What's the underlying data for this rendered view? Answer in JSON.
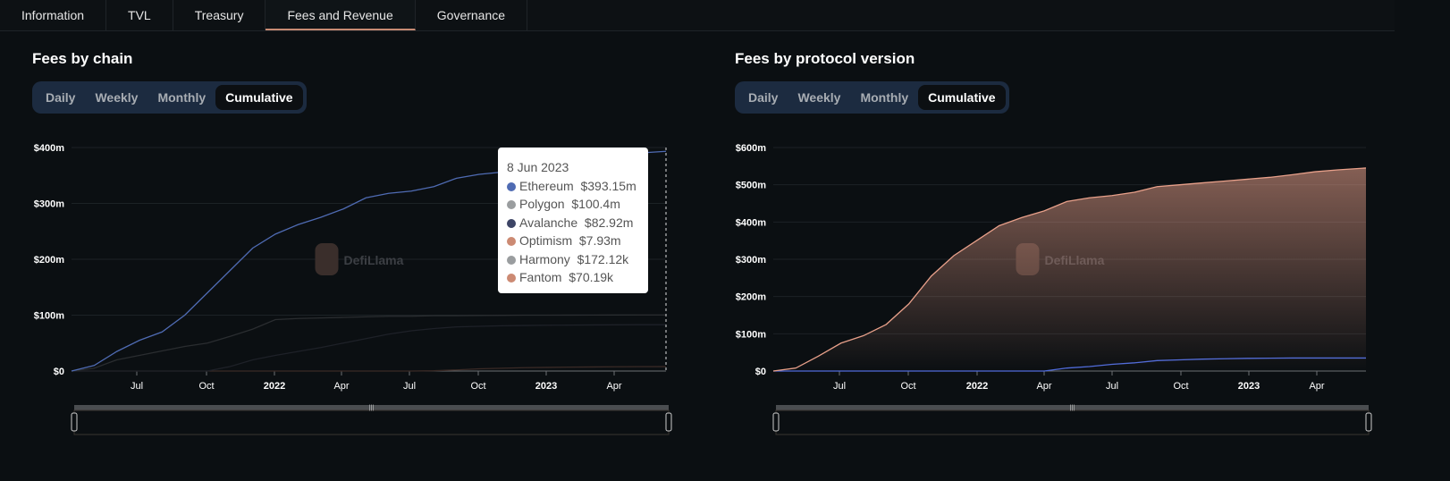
{
  "tabs": [
    {
      "label": "Information"
    },
    {
      "label": "TVL"
    },
    {
      "label": "Treasury"
    },
    {
      "label": "Fees and Revenue",
      "active": true
    },
    {
      "label": "Governance"
    }
  ],
  "period_options": [
    "Daily",
    "Weekly",
    "Monthly",
    "Cumulative"
  ],
  "selected_period": "Cumulative",
  "watermark": "DefiLlama",
  "tooltip": {
    "date": "8 Jun 2023",
    "rows": [
      {
        "name": "Ethereum",
        "value": "$393.15m",
        "color": "#4f6bb3"
      },
      {
        "name": "Polygon",
        "value": "$100.4m",
        "color": "#9a9d9f"
      },
      {
        "name": "Avalanche",
        "value": "$82.92m",
        "color": "#3d4566"
      },
      {
        "name": "Optimism",
        "value": "$7.93m",
        "color": "#cc8a73"
      },
      {
        "name": "Harmony",
        "value": "$172.12k",
        "color": "#9a9d9f"
      },
      {
        "name": "Fantom",
        "value": "$70.19k",
        "color": "#cc8a73"
      }
    ]
  },
  "chart_data": [
    {
      "type": "line",
      "title": "Fees by chain",
      "ylim": [
        0,
        400
      ],
      "yticks": [
        "$0",
        "$100m",
        "$200m",
        "$300m",
        "$400m"
      ],
      "xticks": [
        "Jul",
        "Oct",
        "2022",
        "Apr",
        "Jul",
        "Oct",
        "2023",
        "Apr"
      ],
      "x": [
        "2021-04",
        "2021-05",
        "2021-06",
        "2021-07",
        "2021-08",
        "2021-09",
        "2021-10",
        "2021-11",
        "2021-12",
        "2022-01",
        "2022-02",
        "2022-03",
        "2022-04",
        "2022-05",
        "2022-06",
        "2022-07",
        "2022-08",
        "2022-09",
        "2022-10",
        "2022-11",
        "2022-12",
        "2023-01",
        "2023-02",
        "2023-03",
        "2023-04",
        "2023-05",
        "2023-06"
      ],
      "series": [
        {
          "name": "Ethereum",
          "color": "#4f6bb3",
          "values": [
            0,
            10,
            35,
            55,
            70,
            100,
            140,
            180,
            220,
            245,
            262,
            275,
            290,
            310,
            318,
            322,
            330,
            345,
            352,
            356,
            360,
            365,
            372,
            380,
            385,
            390,
            393.15
          ]
        },
        {
          "name": "Polygon",
          "color": "#2a2d30",
          "values": [
            0,
            5,
            20,
            28,
            36,
            44,
            50,
            62,
            75,
            92,
            94,
            95,
            96,
            97,
            98,
            98,
            99,
            99,
            99.5,
            99.7,
            100,
            100,
            100.1,
            100.2,
            100.3,
            100.4,
            100.4
          ]
        },
        {
          "name": "Avalanche",
          "color": "#1e2128",
          "values": [
            0,
            0,
            0,
            0,
            0,
            0,
            0,
            8,
            20,
            28,
            35,
            42,
            50,
            58,
            66,
            72,
            76,
            79,
            80,
            81,
            81.5,
            82,
            82.2,
            82.5,
            82.7,
            82.9,
            82.92
          ]
        },
        {
          "name": "Optimism",
          "color": "#3a2a26",
          "values": [
            0,
            0,
            0,
            0,
            0,
            0,
            0,
            0,
            0,
            0,
            0,
            0,
            0,
            0,
            0,
            0,
            0.5,
            2,
            4,
            5,
            6,
            6.5,
            7,
            7.3,
            7.6,
            7.8,
            7.93
          ]
        }
      ]
    },
    {
      "type": "area",
      "title": "Fees by protocol version",
      "ylim": [
        0,
        600
      ],
      "yticks": [
        "$0",
        "$100m",
        "$200m",
        "$300m",
        "$400m",
        "$500m",
        "$600m"
      ],
      "xticks": [
        "Jul",
        "Oct",
        "2022",
        "Apr",
        "Jul",
        "Oct",
        "2023",
        "Apr"
      ],
      "x": [
        "2021-04",
        "2021-05",
        "2021-06",
        "2021-07",
        "2021-08",
        "2021-09",
        "2021-10",
        "2021-11",
        "2021-12",
        "2022-01",
        "2022-02",
        "2022-03",
        "2022-04",
        "2022-05",
        "2022-06",
        "2022-07",
        "2022-08",
        "2022-09",
        "2022-10",
        "2022-11",
        "2022-12",
        "2023-01",
        "2023-02",
        "2023-03",
        "2023-04",
        "2023-05",
        "2023-06"
      ],
      "series": [
        {
          "color": "#e8a08a",
          "values": [
            0,
            8,
            40,
            75,
            95,
            125,
            180,
            255,
            310,
            350,
            390,
            412,
            430,
            455,
            465,
            471,
            480,
            495,
            500,
            505,
            510,
            515,
            520,
            527,
            535,
            540,
            545
          ]
        },
        {
          "color": "#4f6bdb",
          "values": [
            0,
            0,
            0,
            0,
            0,
            0,
            0,
            0,
            0,
            0,
            0,
            0,
            0,
            8,
            12,
            18,
            22,
            28,
            30,
            32,
            33,
            34,
            34.5,
            35,
            35,
            35,
            35
          ]
        }
      ]
    }
  ]
}
